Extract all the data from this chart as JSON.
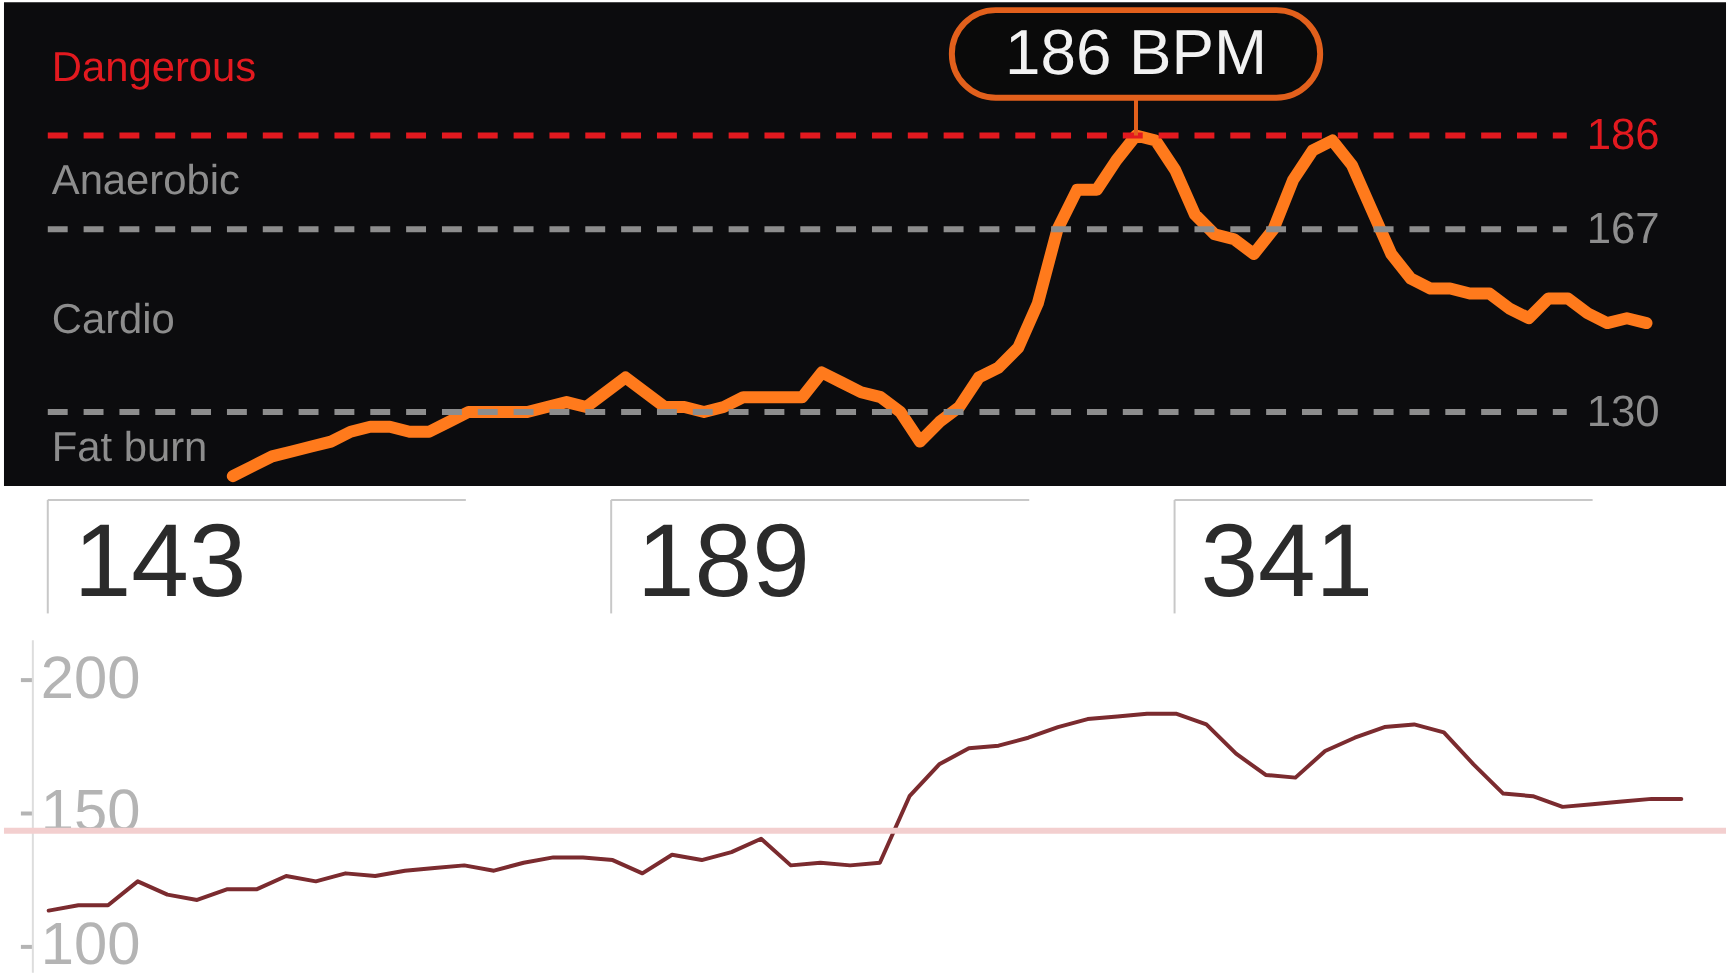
{
  "chart_data": [
    {
      "type": "line",
      "categories": [
        null,
        null,
        null,
        null,
        null,
        null,
        null,
        null,
        null,
        null,
        null,
        null,
        null,
        null,
        null,
        null,
        null,
        null,
        null,
        null,
        null,
        null,
        null,
        null,
        null,
        null,
        null,
        null,
        null,
        null,
        null,
        null,
        null,
        null,
        null,
        null,
        null,
        null,
        null,
        null,
        null,
        null,
        null,
        null,
        null,
        null,
        null,
        null,
        null,
        null,
        null,
        null,
        null,
        null,
        null,
        null,
        null,
        null,
        null,
        null,
        null,
        null,
        null,
        null,
        null,
        null,
        null,
        null,
        null,
        null,
        null,
        null,
        null
      ],
      "values": [
        117,
        119,
        121,
        122,
        123,
        124,
        126,
        127,
        127,
        126,
        126,
        128,
        130,
        130,
        130,
        130,
        131,
        132,
        131,
        134,
        137,
        134,
        131,
        131,
        130,
        131,
        133,
        133,
        133,
        133,
        138,
        136,
        134,
        133,
        130,
        124,
        128,
        131,
        137,
        139,
        143,
        152,
        167,
        175,
        175,
        181,
        186,
        185,
        179,
        170,
        166,
        165,
        162,
        167,
        177,
        183,
        185,
        180,
        171,
        162,
        157,
        155,
        155,
        154,
        154,
        151,
        149,
        153,
        153,
        150,
        148,
        149,
        148
      ],
      "color": "#ff7a1c",
      "ylim": [
        115,
        213
      ],
      "tick_labels": false,
      "ref_lines": [
        {
          "axis": "y",
          "value": 186,
          "label": "186",
          "color": "#e3191f",
          "line_style": "dashed"
        },
        {
          "axis": "y",
          "value": 167,
          "label": "167",
          "color": "#8d8d8d",
          "line_style": "dashed"
        },
        {
          "axis": "y",
          "value": 130,
          "label": "130",
          "color": "#8d8d8d",
          "line_style": "dashed"
        }
      ],
      "annotations": [
        "Dangerous",
        "Anaerobic",
        "Cardio",
        "Fat burn",
        {
          "text": "186 BPM",
          "y": 186
        }
      ]
    },
    {
      "type": "other",
      "annotations": [
        "143",
        "189",
        "341"
      ]
    },
    {
      "type": "line",
      "categories": [
        null,
        null,
        null,
        null,
        null,
        null,
        null,
        null,
        null,
        null,
        null,
        null,
        null,
        null,
        null,
        null,
        null,
        null,
        null,
        null,
        null,
        null,
        null,
        null,
        null,
        null,
        null,
        null,
        null,
        null,
        null,
        null,
        null,
        null,
        null,
        null,
        null,
        null,
        null,
        null,
        null,
        null,
        null,
        null,
        null,
        null,
        null,
        null,
        null,
        null,
        null,
        null,
        null,
        null,
        null,
        null
      ],
      "values": [
        113,
        115,
        115,
        124,
        119,
        117,
        121,
        121,
        126,
        124,
        127,
        126,
        128,
        129,
        130,
        128,
        131,
        133,
        133,
        132,
        127,
        134,
        132,
        135,
        140,
        130,
        131,
        130,
        131,
        156,
        168,
        174,
        175,
        178,
        182,
        185,
        186,
        187,
        187,
        183,
        172,
        164,
        163,
        173,
        178,
        182,
        183,
        180,
        168,
        157,
        156,
        152,
        153,
        154,
        155,
        155
      ],
      "color": "#7b2b2f",
      "ylim": [
        90,
        215
      ],
      "yticks": [
        100,
        150,
        200
      ],
      "tick_labels": "y",
      "ref_lines": [
        {
          "axis": "y",
          "value": 143,
          "color": "#f3cfcf"
        }
      ]
    }
  ]
}
